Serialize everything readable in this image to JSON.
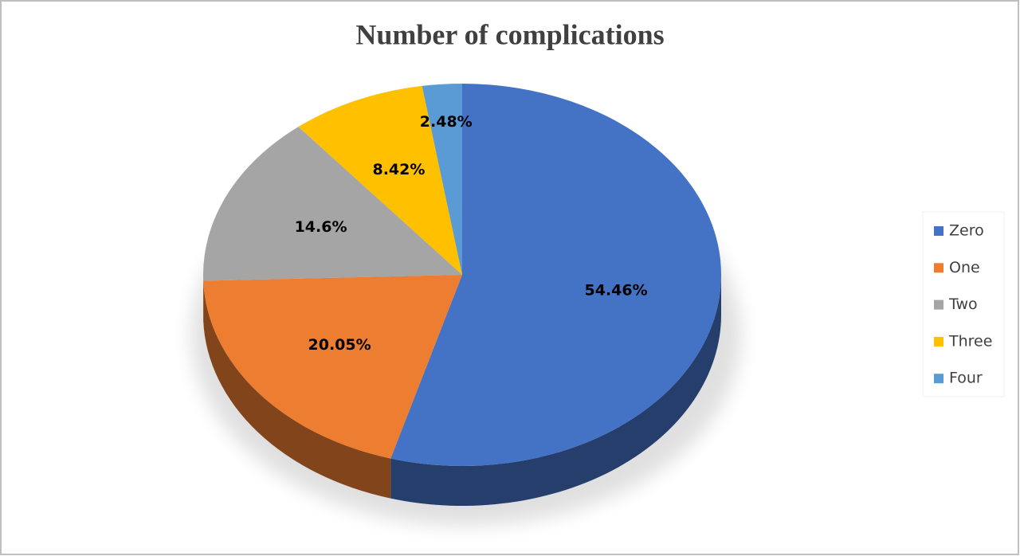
{
  "chart_data": {
    "type": "pie",
    "title": "Number of complications",
    "categories": [
      "Zero",
      "One",
      "Two",
      "Three",
      "Four"
    ],
    "values": [
      54.46,
      20.05,
      14.6,
      8.42,
      2.48
    ],
    "value_labels": [
      "54.46%",
      "20.05%",
      "14.6%",
      "8.42%",
      "2.48%"
    ],
    "colors": [
      "#4472c4",
      "#ed7d31",
      "#a5a5a5",
      "#ffc000",
      "#5b9bd5"
    ],
    "legend": "right"
  }
}
